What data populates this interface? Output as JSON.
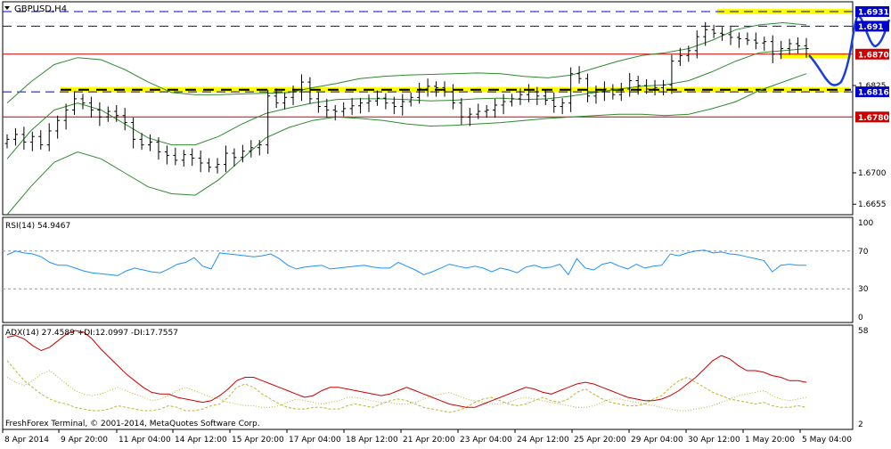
{
  "chart_data": {
    "type": "candlestick",
    "symbol_label": "GBPUSD,H4",
    "footer": "FreshForex Terminal, © 2001-2014, MetaQuotes Software Corp.",
    "colors": {
      "background": "#ffffff",
      "candle": "#000000",
      "bollinger": "#2e8b2e",
      "support_resistance_blue": "#0000cc",
      "support_red": "#cc0000",
      "highlight_yellow": "#ffff00",
      "rsi": "#1e90ff",
      "adx": "#cc0000",
      "di": "#b8b832",
      "forecast": "#1a3fd6"
    },
    "x_labels": [
      "8 Apr 2014",
      "9 Apr 20:00",
      "11 Apr 04:00",
      "14 Apr 12:00",
      "15 Apr 20:00",
      "17 Apr 04:00",
      "18 Apr 12:00",
      "21 Apr 20:00",
      "23 Apr 04:00",
      "24 Apr 12:00",
      "25 Apr 20:00",
      "29 Apr 04:00",
      "30 Apr 12:00",
      "1 May 20:00",
      "5 May 04:00"
    ],
    "price_panel": {
      "ylim": [
        1.664,
        1.6945
      ],
      "tick_labels": [
        "1.6700",
        "1.6655",
        "1.6825"
      ],
      "levels": [
        {
          "value": 1.6931,
          "label": "1.6931",
          "style": "dashed",
          "color": "blue",
          "label_box": true
        },
        {
          "value": 1.691,
          "label": "1.691",
          "style": "dashed",
          "color": "blue",
          "label_box": true
        },
        {
          "value": 1.687,
          "label": "1.6870",
          "style": "solid",
          "color": "red",
          "label_box": true
        },
        {
          "value": 1.6816,
          "label": "1.6816",
          "style": "dashed",
          "color": "blue",
          "label_box": true
        },
        {
          "value": 1.678,
          "label": "1.6780",
          "style": "solid",
          "color": "red",
          "label_box": true
        }
      ],
      "closes": [
        1.6748,
        1.6755,
        1.6744,
        1.6752,
        1.674,
        1.676,
        1.6775,
        1.679,
        1.6806,
        1.68,
        1.679,
        1.678,
        1.6788,
        1.6782,
        1.6772,
        1.6748,
        1.674,
        1.6744,
        1.673,
        1.6725,
        1.6718,
        1.6726,
        1.6721,
        1.6714,
        1.6708,
        1.6712,
        1.6728,
        1.6722,
        1.6731,
        1.6736,
        1.674,
        1.681,
        1.68,
        1.6808,
        1.6816,
        1.683,
        1.6806,
        1.6795,
        1.679,
        1.6788,
        1.6792,
        1.6796,
        1.68,
        1.6803,
        1.6807,
        1.68,
        1.6795,
        1.6802,
        1.6808,
        1.682,
        1.6824,
        1.6822,
        1.6816,
        1.68,
        1.678,
        1.6784,
        1.6788,
        1.679,
        1.6797,
        1.6802,
        1.6806,
        1.6812,
        1.6816,
        1.681,
        1.6804,
        1.6795,
        1.68,
        1.6842,
        1.6835,
        1.681,
        1.6816,
        1.682,
        1.6812,
        1.682,
        1.6832,
        1.6825,
        1.682,
        1.6822,
        1.6826,
        1.686,
        1.6868,
        1.6875,
        1.6895,
        1.6905,
        1.69,
        1.6898,
        1.6894,
        1.6892,
        1.689,
        1.6886,
        1.6888,
        1.687,
        1.6878,
        1.6885,
        1.6882,
        1.6878
      ],
      "bollinger_upper": [
        1.68,
        1.683,
        1.6855,
        1.6865,
        1.6862,
        1.6848,
        1.683,
        1.6815,
        1.6812,
        1.6812,
        1.6813,
        1.6814,
        1.6815,
        1.6822,
        1.6828,
        1.6835,
        1.6838,
        1.684,
        1.6841,
        1.6842,
        1.6843,
        1.6842,
        1.6838,
        1.6836,
        1.684,
        1.685,
        1.686,
        1.6868,
        1.6872,
        1.6878,
        1.689,
        1.6905,
        1.6912,
        1.6915,
        1.6912
      ],
      "bollinger_middle": [
        1.672,
        1.676,
        1.679,
        1.68,
        1.679,
        1.677,
        1.675,
        1.674,
        1.674,
        1.6752,
        1.677,
        1.6785,
        1.6793,
        1.68,
        1.6805,
        1.6806,
        1.6806,
        1.6805,
        1.6803,
        1.6804,
        1.6806,
        1.6807,
        1.6805,
        1.6806,
        1.681,
        1.6815,
        1.682,
        1.6824,
        1.6826,
        1.6832,
        1.6845,
        1.686,
        1.6872,
        1.6875,
        1.6878
      ],
      "bollinger_lower": [
        1.664,
        1.668,
        1.6715,
        1.673,
        1.672,
        1.67,
        1.668,
        1.667,
        1.6668,
        1.669,
        1.672,
        1.675,
        1.6765,
        1.6775,
        1.678,
        1.6778,
        1.6775,
        1.677,
        1.6767,
        1.6768,
        1.677,
        1.6772,
        1.6775,
        1.6778,
        1.678,
        1.6782,
        1.6784,
        1.6784,
        1.6782,
        1.6784,
        1.6792,
        1.6802,
        1.6818,
        1.683,
        1.6842
      ]
    },
    "rsi_panel": {
      "label": "RSI(14) 54.9467",
      "ylim": [
        0,
        100
      ],
      "tick_labels": [
        "100",
        "70",
        "30",
        "0"
      ],
      "levels": [
        70,
        30
      ],
      "values": [
        66,
        70,
        68,
        67,
        64,
        58,
        55,
        55,
        52,
        49,
        47,
        46,
        45,
        44,
        49,
        52,
        50,
        48,
        47,
        51,
        56,
        58,
        63,
        54,
        51,
        68,
        67,
        66,
        65,
        64,
        65,
        67,
        62,
        55,
        51,
        53,
        54,
        55,
        51,
        52,
        53,
        54,
        55,
        53,
        52,
        52,
        58,
        54,
        50,
        45,
        48,
        52,
        56,
        54,
        52,
        54,
        52,
        48,
        52,
        50,
        47,
        53,
        55,
        52,
        53,
        56,
        45,
        62,
        52,
        50,
        56,
        58,
        54,
        51,
        56,
        52,
        54,
        55,
        67,
        65,
        68,
        70,
        71,
        68,
        69,
        67,
        66,
        64,
        62,
        60,
        48,
        55,
        56,
        55,
        55
      ]
    },
    "adx_panel": {
      "label": "ADX(14) 27.4589 +DI:12.0997 -DI:17.7557",
      "ylim": [
        2,
        58
      ],
      "tick_labels": [
        "58",
        "2"
      ],
      "adx": [
        54,
        55,
        53,
        49,
        46,
        48,
        52,
        56,
        58,
        57,
        53,
        47,
        42,
        37,
        32,
        28,
        24,
        21,
        20,
        20,
        18,
        17,
        16,
        15,
        16,
        19,
        23,
        28,
        30,
        30,
        28,
        26,
        24,
        22,
        20,
        18,
        19,
        22,
        24,
        24,
        23,
        22,
        21,
        20,
        19,
        20,
        22,
        24,
        22,
        20,
        18,
        16,
        14,
        13,
        12,
        12,
        14,
        16,
        18,
        20,
        22,
        24,
        23,
        21,
        20,
        22,
        24,
        26,
        27,
        26,
        24,
        22,
        20,
        18,
        17,
        16,
        16,
        17,
        19,
        22,
        26,
        30,
        35,
        40,
        43,
        41,
        37,
        34,
        34,
        33,
        31,
        30,
        28,
        28,
        27
      ],
      "plus_di": [
        40,
        34,
        28,
        24,
        20,
        17,
        15,
        14,
        12,
        11,
        10,
        10,
        11,
        13,
        12,
        11,
        10,
        10,
        11,
        13,
        12,
        10,
        10,
        11,
        13,
        14,
        18,
        24,
        26,
        24,
        20,
        17,
        14,
        12,
        11,
        11,
        12,
        12,
        11,
        11,
        13,
        14,
        13,
        12,
        14,
        16,
        17,
        16,
        14,
        12,
        11,
        10,
        9,
        10,
        12,
        15,
        17,
        18,
        16,
        14,
        13,
        14,
        16,
        18,
        16,
        15,
        17,
        21,
        23,
        20,
        17,
        15,
        14,
        13,
        13,
        14,
        17,
        19,
        24,
        28,
        30,
        27,
        24,
        21,
        19,
        17,
        16,
        15,
        14,
        15,
        13,
        12,
        12,
        13,
        12
      ],
      "minus_di": [
        30,
        27,
        25,
        28,
        32,
        34,
        30,
        26,
        22,
        20,
        19,
        20,
        22,
        24,
        22,
        20,
        18,
        16,
        17,
        19,
        22,
        24,
        22,
        20,
        18,
        17,
        15,
        14,
        13,
        13,
        12,
        12,
        13,
        15,
        17,
        16,
        15,
        14,
        15,
        16,
        18,
        18,
        17,
        16,
        15,
        15,
        14,
        14,
        15,
        17,
        19,
        20,
        21,
        19,
        17,
        16,
        15,
        14,
        14,
        15,
        17,
        18,
        17,
        16,
        15,
        14,
        13,
        12,
        12,
        13,
        15,
        17,
        17,
        16,
        15,
        14,
        13,
        12,
        11,
        10,
        10,
        11,
        12,
        13,
        15,
        17,
        19,
        20,
        21,
        22,
        19,
        17,
        16,
        17,
        18
      ]
    }
  }
}
